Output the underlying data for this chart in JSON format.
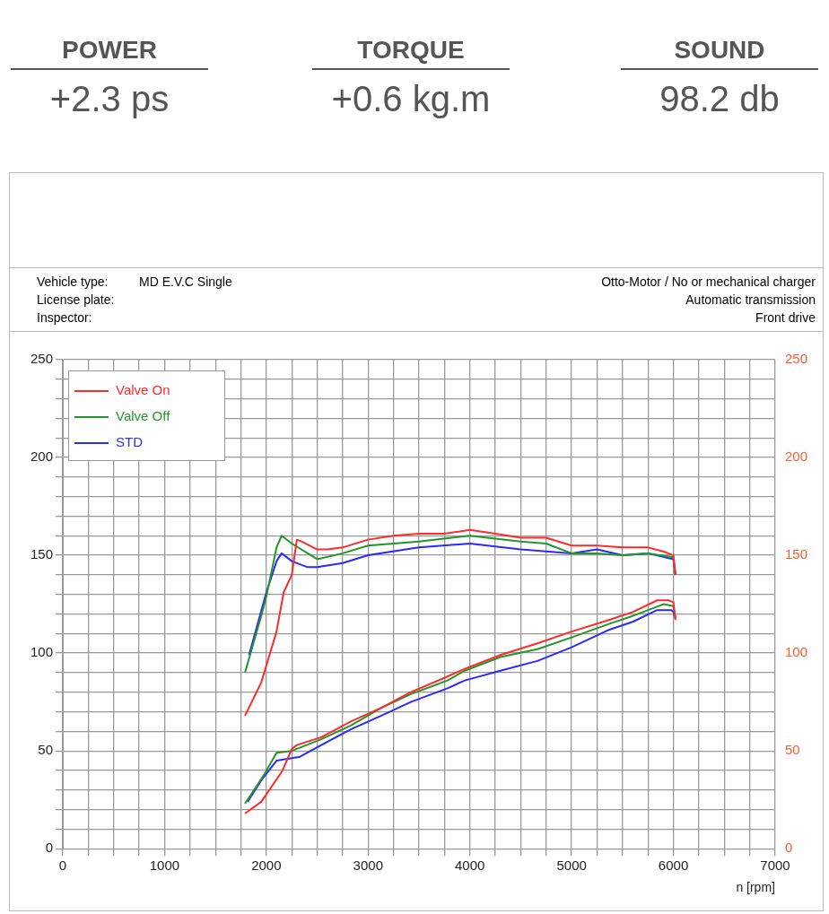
{
  "chart_data": [
    {
      "type": "other",
      "annotations": [
        "POWER",
        "+2.3 ps",
        "TORQUE",
        "+0.6 kg.m",
        "SOUND",
        "98.2 db"
      ]
    },
    {
      "type": "line",
      "xlabel": "n [rpm]",
      "legend": "top left",
      "grid": true,
      "marker": "none",
      "line_style": "solid",
      "annotations": [
        "Vehicle type:",
        "MD E.V.C Single",
        "License plate:",
        "Inspector:",
        "Otto-Motor / No or mechanical charger",
        "Automatic transmission",
        "Front drive"
      ],
      "xlim": [
        0,
        7000
      ],
      "xticks": [
        0,
        {
          "value": 250,
          "label": null
        },
        {
          "value": 500,
          "label": null
        },
        {
          "value": 750,
          "label": null
        },
        1000,
        {
          "value": 1250,
          "label": null
        },
        {
          "value": 1500,
          "label": null
        },
        {
          "value": 1750,
          "label": null
        },
        2000,
        {
          "value": 2250,
          "label": null
        },
        {
          "value": 2500,
          "label": null
        },
        {
          "value": 2750,
          "label": null
        },
        3000,
        {
          "value": 3250,
          "label": null
        },
        {
          "value": 3500,
          "label": null
        },
        {
          "value": 3750,
          "label": null
        },
        4000,
        {
          "value": 4250,
          "label": null
        },
        {
          "value": 4500,
          "label": null
        },
        {
          "value": 4750,
          "label": null
        },
        5000,
        {
          "value": 5250,
          "label": null
        },
        {
          "value": 5500,
          "label": null
        },
        {
          "value": 5750,
          "label": null
        },
        6000,
        {
          "value": 6250,
          "label": null
        },
        {
          "value": 6500,
          "label": null
        },
        {
          "value": 6750,
          "label": null
        },
        7000
      ],
      "ylim": [
        0,
        250
      ],
      "yticks": [
        0,
        {
          "value": 10,
          "label": null
        },
        {
          "value": 20,
          "label": null
        },
        {
          "value": 30,
          "label": null
        },
        {
          "value": 40,
          "label": null
        },
        50,
        {
          "value": 60,
          "label": null
        },
        {
          "value": 70,
          "label": null
        },
        {
          "value": 80,
          "label": null
        },
        {
          "value": 90,
          "label": null
        },
        100,
        {
          "value": 110,
          "label": null
        },
        {
          "value": 120,
          "label": null
        },
        {
          "value": 130,
          "label": null
        },
        {
          "value": 140,
          "label": null
        },
        150,
        {
          "value": 160,
          "label": null
        },
        {
          "value": 170,
          "label": null
        },
        {
          "value": 180,
          "label": null
        },
        {
          "value": 190,
          "label": null
        },
        200,
        {
          "value": 210,
          "label": null
        },
        {
          "value": 220,
          "label": null
        },
        {
          "value": 230,
          "label": null
        },
        {
          "value": 240,
          "label": null
        },
        250
      ],
      "y2lim": [
        0,
        250
      ],
      "y2ticks": [
        0,
        50,
        100,
        150,
        200,
        250
      ],
      "series": [
        {
          "name": "Valve On",
          "color": "#ff2a2a",
          "x": [
            1790,
            1950,
            2160,
            2250,
            2300,
            2540,
            2830,
            3130,
            3420,
            3780,
            3950,
            4300,
            4664,
            5000,
            5372,
            5600,
            5841,
            5950,
            6000,
            6020
          ],
          "values": [
            18,
            24,
            40,
            51,
            53,
            57,
            65,
            72,
            80,
            88,
            92,
            99,
            105,
            111,
            117,
            121,
            127,
            127,
            126,
            117
          ]
        },
        {
          "name": "Valve Off",
          "color": "#22962a",
          "x": [
            1790,
            1980,
            2100,
            2250,
            2540,
            2830,
            3130,
            3420,
            3780,
            3950,
            4300,
            4664,
            5000,
            5372,
            5600,
            5903,
            6000,
            6020
          ],
          "values": [
            23,
            38,
            49,
            50,
            56,
            63,
            72,
            79,
            86,
            91,
            98,
            102,
            108,
            115,
            119,
            125,
            124,
            118
          ]
        },
        {
          "name": "STD",
          "color": "#2a2aff",
          "x": [
            1815,
            1950,
            2100,
            2330,
            2540,
            2830,
            3130,
            3420,
            3780,
            3950,
            4300,
            4664,
            5000,
            5372,
            5600,
            5841,
            5980,
            6000,
            6020
          ],
          "values": [
            24,
            35,
            45,
            47,
            53,
            61,
            68,
            75,
            82,
            86,
            91,
            96,
            103,
            112,
            116,
            122,
            122,
            121,
            118
          ]
        },
        {
          "color": "#ff2a2a",
          "x": [
            1790,
            1950,
            2100,
            2170,
            2250,
            2300,
            2350,
            2500,
            2600,
            2750,
            3000,
            3250,
            3500,
            3750,
            4000,
            4250,
            4500,
            4750,
            5000,
            5250,
            5500,
            5750,
            5900,
            6000,
            6020
          ],
          "values": [
            68,
            85,
            111,
            131,
            140,
            158,
            157,
            153,
            153,
            154,
            158,
            160,
            161,
            161,
            163,
            161,
            159,
            159,
            155,
            155,
            154,
            154,
            152,
            150,
            140
          ]
        },
        {
          "color": "#22962a",
          "x": [
            1790,
            1950,
            2000,
            2100,
            2150,
            2250,
            2500,
            2750,
            3000,
            3500,
            4000,
            4500,
            4750,
            5000,
            5250,
            5500,
            5750,
            6000,
            6020
          ],
          "values": [
            90,
            119,
            129,
            154,
            160,
            156,
            148,
            151,
            155,
            157,
            160,
            157,
            156,
            151,
            151,
            150,
            151,
            149,
            140
          ]
        },
        {
          "color": "#2a2aff",
          "x": [
            1830,
            2000,
            2100,
            2150,
            2250,
            2400,
            2500,
            2750,
            3000,
            3500,
            4000,
            4500,
            5000,
            5250,
            5500,
            5750,
            6000,
            6020
          ],
          "values": [
            99,
            131,
            147,
            151,
            147,
            144,
            144,
            146,
            150,
            154,
            156,
            153,
            151,
            153,
            150,
            151,
            148,
            140
          ]
        }
      ]
    }
  ]
}
